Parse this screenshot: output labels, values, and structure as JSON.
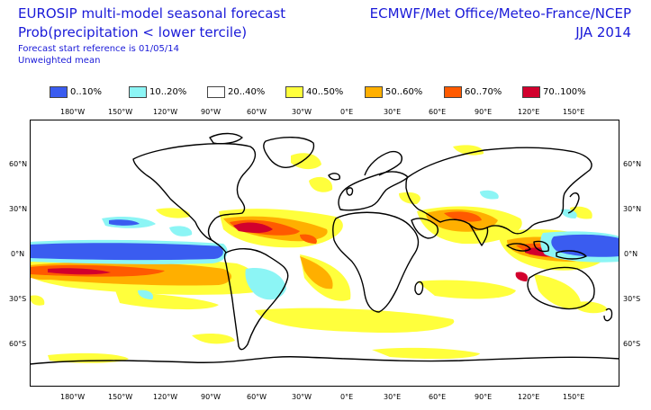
{
  "header": {
    "title_line1": "EUROSIP multi-model seasonal forecast",
    "title_line2": "Prob(precipitation < lower tercile)",
    "reference": "Forecast start reference is 01/05/14",
    "mean": "Unweighted mean",
    "centres": "ECMWF/Met Office/Meteo-France/NCEP",
    "season": "JJA 2014"
  },
  "legend": [
    {
      "label": "0..10%",
      "color": "#3a5cf0"
    },
    {
      "label": "10..20%",
      "color": "#8cf5f5"
    },
    {
      "label": "20..40%",
      "color": "#ffffff"
    },
    {
      "label": "40..50%",
      "color": "#ffff3c"
    },
    {
      "label": "50..60%",
      "color": "#ffaf00"
    },
    {
      "label": "60..70%",
      "color": "#ff5a00"
    },
    {
      "label": "70..100%",
      "color": "#d2002d"
    }
  ],
  "lon_labels": [
    "180°W",
    "150°W",
    "120°W",
    "90°W",
    "60°W",
    "30°W",
    "0°E",
    "30°E",
    "60°E",
    "90°E",
    "120°E",
    "150°E"
  ],
  "lat_labels": [
    "60°N",
    "30°N",
    "0°N",
    "30°S",
    "60°S"
  ]
}
